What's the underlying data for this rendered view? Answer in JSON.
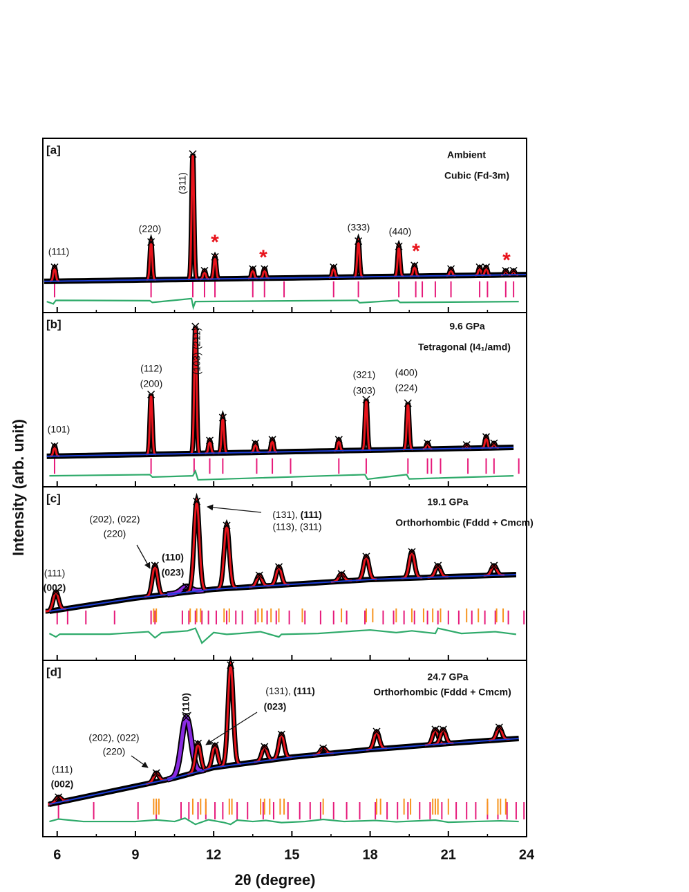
{
  "x_label": "2θ (degree)",
  "y_label": "Intensity (arb. unit)",
  "chart_data": [
    {
      "type": "xrd",
      "panel": "[a]",
      "title": "Ambient",
      "subtitle": "Cubic (Fd-3m)",
      "xlim": [
        5.45,
        24
      ],
      "xticks": [
        6,
        9,
        12,
        15,
        18,
        21,
        24
      ],
      "xminorticks": [
        7.5,
        10.5,
        13.5,
        16.5,
        19.5,
        22.5
      ],
      "ylim": [
        0,
        100
      ],
      "background": {
        "x": [
          5.5,
          24
        ],
        "values": [
          17.9,
          21.8
        ],
        "color": "#1f3fd6"
      },
      "peaks": {
        "x": [
          5.9,
          9.6,
          11.2,
          11.65,
          12.05,
          13.5,
          13.95,
          16.6,
          17.55,
          19.1,
          19.7,
          21.1,
          22.2,
          22.45,
          23.2,
          23.5
        ],
        "values": [
          26,
          40.5,
          91,
          24,
          32,
          25,
          25,
          26,
          41,
          38,
          27,
          25,
          26,
          26,
          24,
          24
        ],
        "color": "#e8141c"
      },
      "reflections": [
        {
          "color": "#e6197a",
          "x": [
            5.9,
            9.6,
            11.2,
            11.65,
            12.05,
            13.5,
            13.95,
            14.7,
            16.6,
            17.55,
            19.1,
            19.75,
            20.0,
            20.5,
            21.1,
            22.2,
            22.5,
            23.2,
            23.5
          ]
        }
      ],
      "difference": {
        "color": "#2eaa6a",
        "x": [
          5.6,
          5.85,
          5.95,
          9.55,
          9.65,
          11.15,
          11.22,
          11.3,
          17.5,
          17.6,
          19.05,
          19.15,
          23.7
        ],
        "values": [
          6.3,
          5,
          7,
          6.8,
          5.8,
          8,
          3,
          6.3,
          7,
          5.6,
          7,
          5.8,
          6.3
        ]
      },
      "annotations": [
        {
          "text": "(111)"
        },
        {
          "text": "(220)"
        },
        {
          "text": "(311)"
        },
        {
          "text": "(333)"
        },
        {
          "text": "(440)"
        },
        {
          "text": "*",
          "color": "#e8141c"
        },
        {
          "text": "*",
          "color": "#e8141c"
        },
        {
          "text": "*",
          "color": "#e8141c"
        },
        {
          "text": "*",
          "color": "#e8141c"
        }
      ]
    },
    {
      "type": "xrd",
      "panel": "[b]",
      "title": "9.6 GPa",
      "subtitle": "Tetragonal (I4₁/amd)",
      "xlim": [
        5.45,
        24
      ],
      "xticks": [
        6,
        9,
        12,
        15,
        18,
        21,
        24
      ],
      "xminorticks": [
        7.5,
        10.5,
        13.5,
        16.5,
        19.5,
        22.5
      ],
      "ylim": [
        0,
        100
      ],
      "background": {
        "x": [
          5.6,
          23.5
        ],
        "values": [
          17.5,
          22.6
        ],
        "color": "#1f3fd6"
      },
      "peaks": {
        "x": [
          5.9,
          9.6,
          11.3,
          11.85,
          12.35,
          13.6,
          14.25,
          16.8,
          17.85,
          19.45,
          20.2,
          21.7,
          22.45,
          22.75
        ],
        "values": [
          23.4,
          53,
          92,
          26.6,
          39.7,
          25,
          27,
          27,
          50,
          48,
          25,
          24,
          28.6,
          25
        ],
        "color": "#e8141c"
      },
      "reflections": [
        {
          "color": "#e6197a",
          "x": [
            5.9,
            9.6,
            11.25,
            11.85,
            12.35,
            13.65,
            14.25,
            14.95,
            16.8,
            17.85,
            19.45,
            20.2,
            20.35,
            20.7,
            21.75,
            22.45,
            22.75,
            23.7
          ]
        }
      ],
      "difference": {
        "color": "#2eaa6a",
        "x": [
          5.7,
          9.55,
          9.65,
          11.2,
          11.3,
          11.4,
          17.8,
          17.9,
          19.4,
          19.5,
          23.5
        ],
        "values": [
          6.3,
          7,
          5.6,
          6.3,
          9,
          4,
          7,
          4.4,
          7,
          4.5,
          6.3
        ]
      },
      "annotations": [
        {
          "text": "(101)"
        },
        {
          "text": "(112)"
        },
        {
          "text": "(200)"
        },
        {
          "text": "(103) (211)"
        },
        {
          "text": "(321)"
        },
        {
          "text": "(303)"
        },
        {
          "text": "(400)"
        },
        {
          "text": "(224)"
        }
      ]
    },
    {
      "type": "xrd",
      "panel": "[c]",
      "title": "19.1 GPa",
      "subtitle": "Orthorhombic (Fddd + Cmcm)",
      "xlim": [
        5.45,
        24
      ],
      "xticks": [
        6,
        9,
        12,
        15,
        18,
        21,
        24
      ],
      "xminorticks": [
        7.5,
        10.5,
        13.5,
        16.5,
        19.5,
        22.5
      ],
      "ylim": [
        0,
        100
      ],
      "background": {
        "x": [
          5.7,
          9,
          12,
          15,
          18,
          21,
          23.6
        ],
        "values": [
          28.3,
          35.9,
          41,
          43.8,
          46.6,
          48.2,
          49.4
        ],
        "color": "#1f3fd6"
      },
      "peaks": {
        "x": [
          5.95,
          9.75,
          11.35,
          12.5,
          13.75,
          14.5,
          16.9,
          17.85,
          19.6,
          20.6,
          22.75
        ],
        "values": [
          39.4,
          54.6,
          91.6,
          77.7,
          49,
          53.8,
          49.8,
          59.8,
          62.5,
          54.6,
          54.6
        ],
        "color": "#e8141c"
      },
      "shoulder": {
        "x": [
          10.95
        ],
        "values": [
          42.5
        ],
        "color": "#8a2be2"
      },
      "reflections": [
        {
          "color": "#e6197a",
          "x": [
            6.0,
            6.4,
            7.1,
            8.2,
            9.6,
            9.75,
            10.8,
            11.05,
            11.3,
            11.55,
            11.8,
            12.1,
            12.5,
            12.85,
            13.1,
            13.6,
            14.05,
            14.4,
            14.9,
            15.5,
            16.1,
            16.6,
            17.1,
            17.8,
            18.5,
            18.9,
            19.3,
            19.7,
            20.2,
            20.6,
            21.0,
            21.4,
            21.9,
            22.4,
            22.8,
            23.3,
            23.9
          ]
        },
        {
          "color": "#f7941d",
          "x": [
            9.7,
            9.8,
            11.1,
            11.35,
            11.5,
            12.4,
            12.6,
            13.7,
            13.85,
            14.2,
            14.5,
            15.4,
            16.9,
            17.85,
            18.1,
            19.0,
            19.6,
            20.05,
            20.4,
            20.7,
            21.7,
            22.15,
            22.85,
            23.1
          ]
        }
      ],
      "difference": {
        "color": "#2eaa6a",
        "x": [
          5.7,
          5.95,
          6.1,
          8,
          9.5,
          9.75,
          10,
          11,
          11.3,
          11.55,
          12,
          12.5,
          13,
          13.8,
          14.5,
          14.6,
          16,
          17,
          18,
          19,
          19.6,
          20.5,
          20.6,
          21.5,
          22.8,
          23.6
        ],
        "values": [
          15.5,
          13.5,
          15.1,
          15.1,
          16.5,
          13,
          15.9,
          17,
          18.5,
          10,
          16,
          15,
          15.5,
          16.5,
          13.5,
          15,
          15.5,
          16.5,
          17.5,
          16,
          17,
          15.5,
          18.5,
          15.5,
          16.5,
          15
        ]
      },
      "annotations": [
        {
          "text": "(111)"
        },
        {
          "text": "(002)",
          "bold": true
        },
        {
          "text": "(202), (022)"
        },
        {
          "text": "(220)"
        },
        {
          "text": "(110)",
          "bold": true
        },
        {
          "text": "(023)",
          "bold": true
        },
        {
          "parts": [
            {
              "text": "(131), "
            },
            {
              "text": "(111)",
              "bold": true
            }
          ]
        },
        {
          "text": "(113), (311)"
        }
      ]
    },
    {
      "type": "xrd",
      "panel": "[d]",
      "title": "24.7 GPa",
      "subtitle": "Orthorhombic (Fddd + Cmcm)",
      "xlim": [
        5.45,
        24
      ],
      "xticks": [
        6,
        9,
        12,
        15,
        18,
        21,
        24
      ],
      "xminorticks": [
        7.5,
        10.5,
        13.5,
        16.5,
        19.5,
        22.5
      ],
      "ylim": [
        0,
        100
      ],
      "background": {
        "x": [
          5.7,
          9,
          10.5,
          12,
          15,
          18,
          21,
          23.7
        ],
        "values": [
          18.4,
          28.6,
          33.3,
          39.2,
          45.1,
          49.4,
          52.9,
          55.7
        ],
        "color": "#1f3fd6"
      },
      "peaks": {
        "x": [
          6.05,
          9.8,
          11.4,
          12.05,
          12.65,
          13.95,
          14.6,
          16.2,
          18.25,
          20.5,
          20.8,
          22.95
        ],
        "values": [
          22.4,
          36.1,
          52.9,
          51.8,
          97.3,
          51,
          58,
          50.2,
          59.6,
          60.8,
          60.8,
          62
        ],
        "color": "#e8141c"
      },
      "shoulder": {
        "x": [
          10.95
        ],
        "values": [
          67.5
        ],
        "color": "#8a2be2"
      },
      "reflections": [
        {
          "color": "#e6197a",
          "x": [
            6.05,
            7.4,
            9.1,
            9.8,
            10.75,
            11.05,
            11.4,
            11.7,
            12.05,
            12.35,
            12.9,
            13.3,
            13.9,
            14.3,
            14.85,
            15.3,
            15.7,
            16.1,
            16.6,
            17.1,
            17.6,
            18.2,
            18.65,
            19.05,
            19.45,
            19.9,
            20.3,
            20.75,
            21.3,
            21.7,
            22.05,
            22.5,
            22.9,
            23.25,
            23.6,
            23.9
          ]
        },
        {
          "color": "#f7941d",
          "x": [
            9.7,
            9.8,
            9.9,
            11.2,
            11.5,
            11.7,
            12.6,
            12.7,
            13.8,
            13.95,
            14.15,
            14.55,
            14.7,
            16.2,
            18.25,
            18.4,
            19.3,
            19.55,
            20.4,
            20.5,
            20.6,
            21.0,
            22.5,
            22.9,
            23.0,
            23.2
          ]
        }
      ],
      "difference": {
        "color": "#2eaa6a",
        "x": [
          5.7,
          6.05,
          7,
          9,
          9.8,
          10.5,
          10.9,
          11.3,
          11.8,
          12.4,
          12.65,
          12.9,
          13.5,
          14,
          14.6,
          15.5,
          16.2,
          17,
          18.2,
          19,
          20.5,
          21,
          22,
          23,
          23.7
        ],
        "values": [
          8.6,
          10,
          8.6,
          8.6,
          9.5,
          8.6,
          10.5,
          7,
          9.6,
          8,
          7,
          9.4,
          8.6,
          9.2,
          8,
          8.6,
          9.8,
          8.6,
          9.2,
          8.4,
          9.4,
          8.2,
          8.6,
          9,
          8.6
        ]
      },
      "annotations": [
        {
          "text": "(111)"
        },
        {
          "text": "(002)",
          "bold": true
        },
        {
          "text": "(202), (022)"
        },
        {
          "text": "(220)"
        },
        {
          "text": "(110)",
          "bold": true
        },
        {
          "parts": [
            {
              "text": "(131), "
            },
            {
              "text": "(111)",
              "bold": true
            }
          ]
        },
        {
          "text": "(023)",
          "bold": true
        }
      ]
    }
  ]
}
